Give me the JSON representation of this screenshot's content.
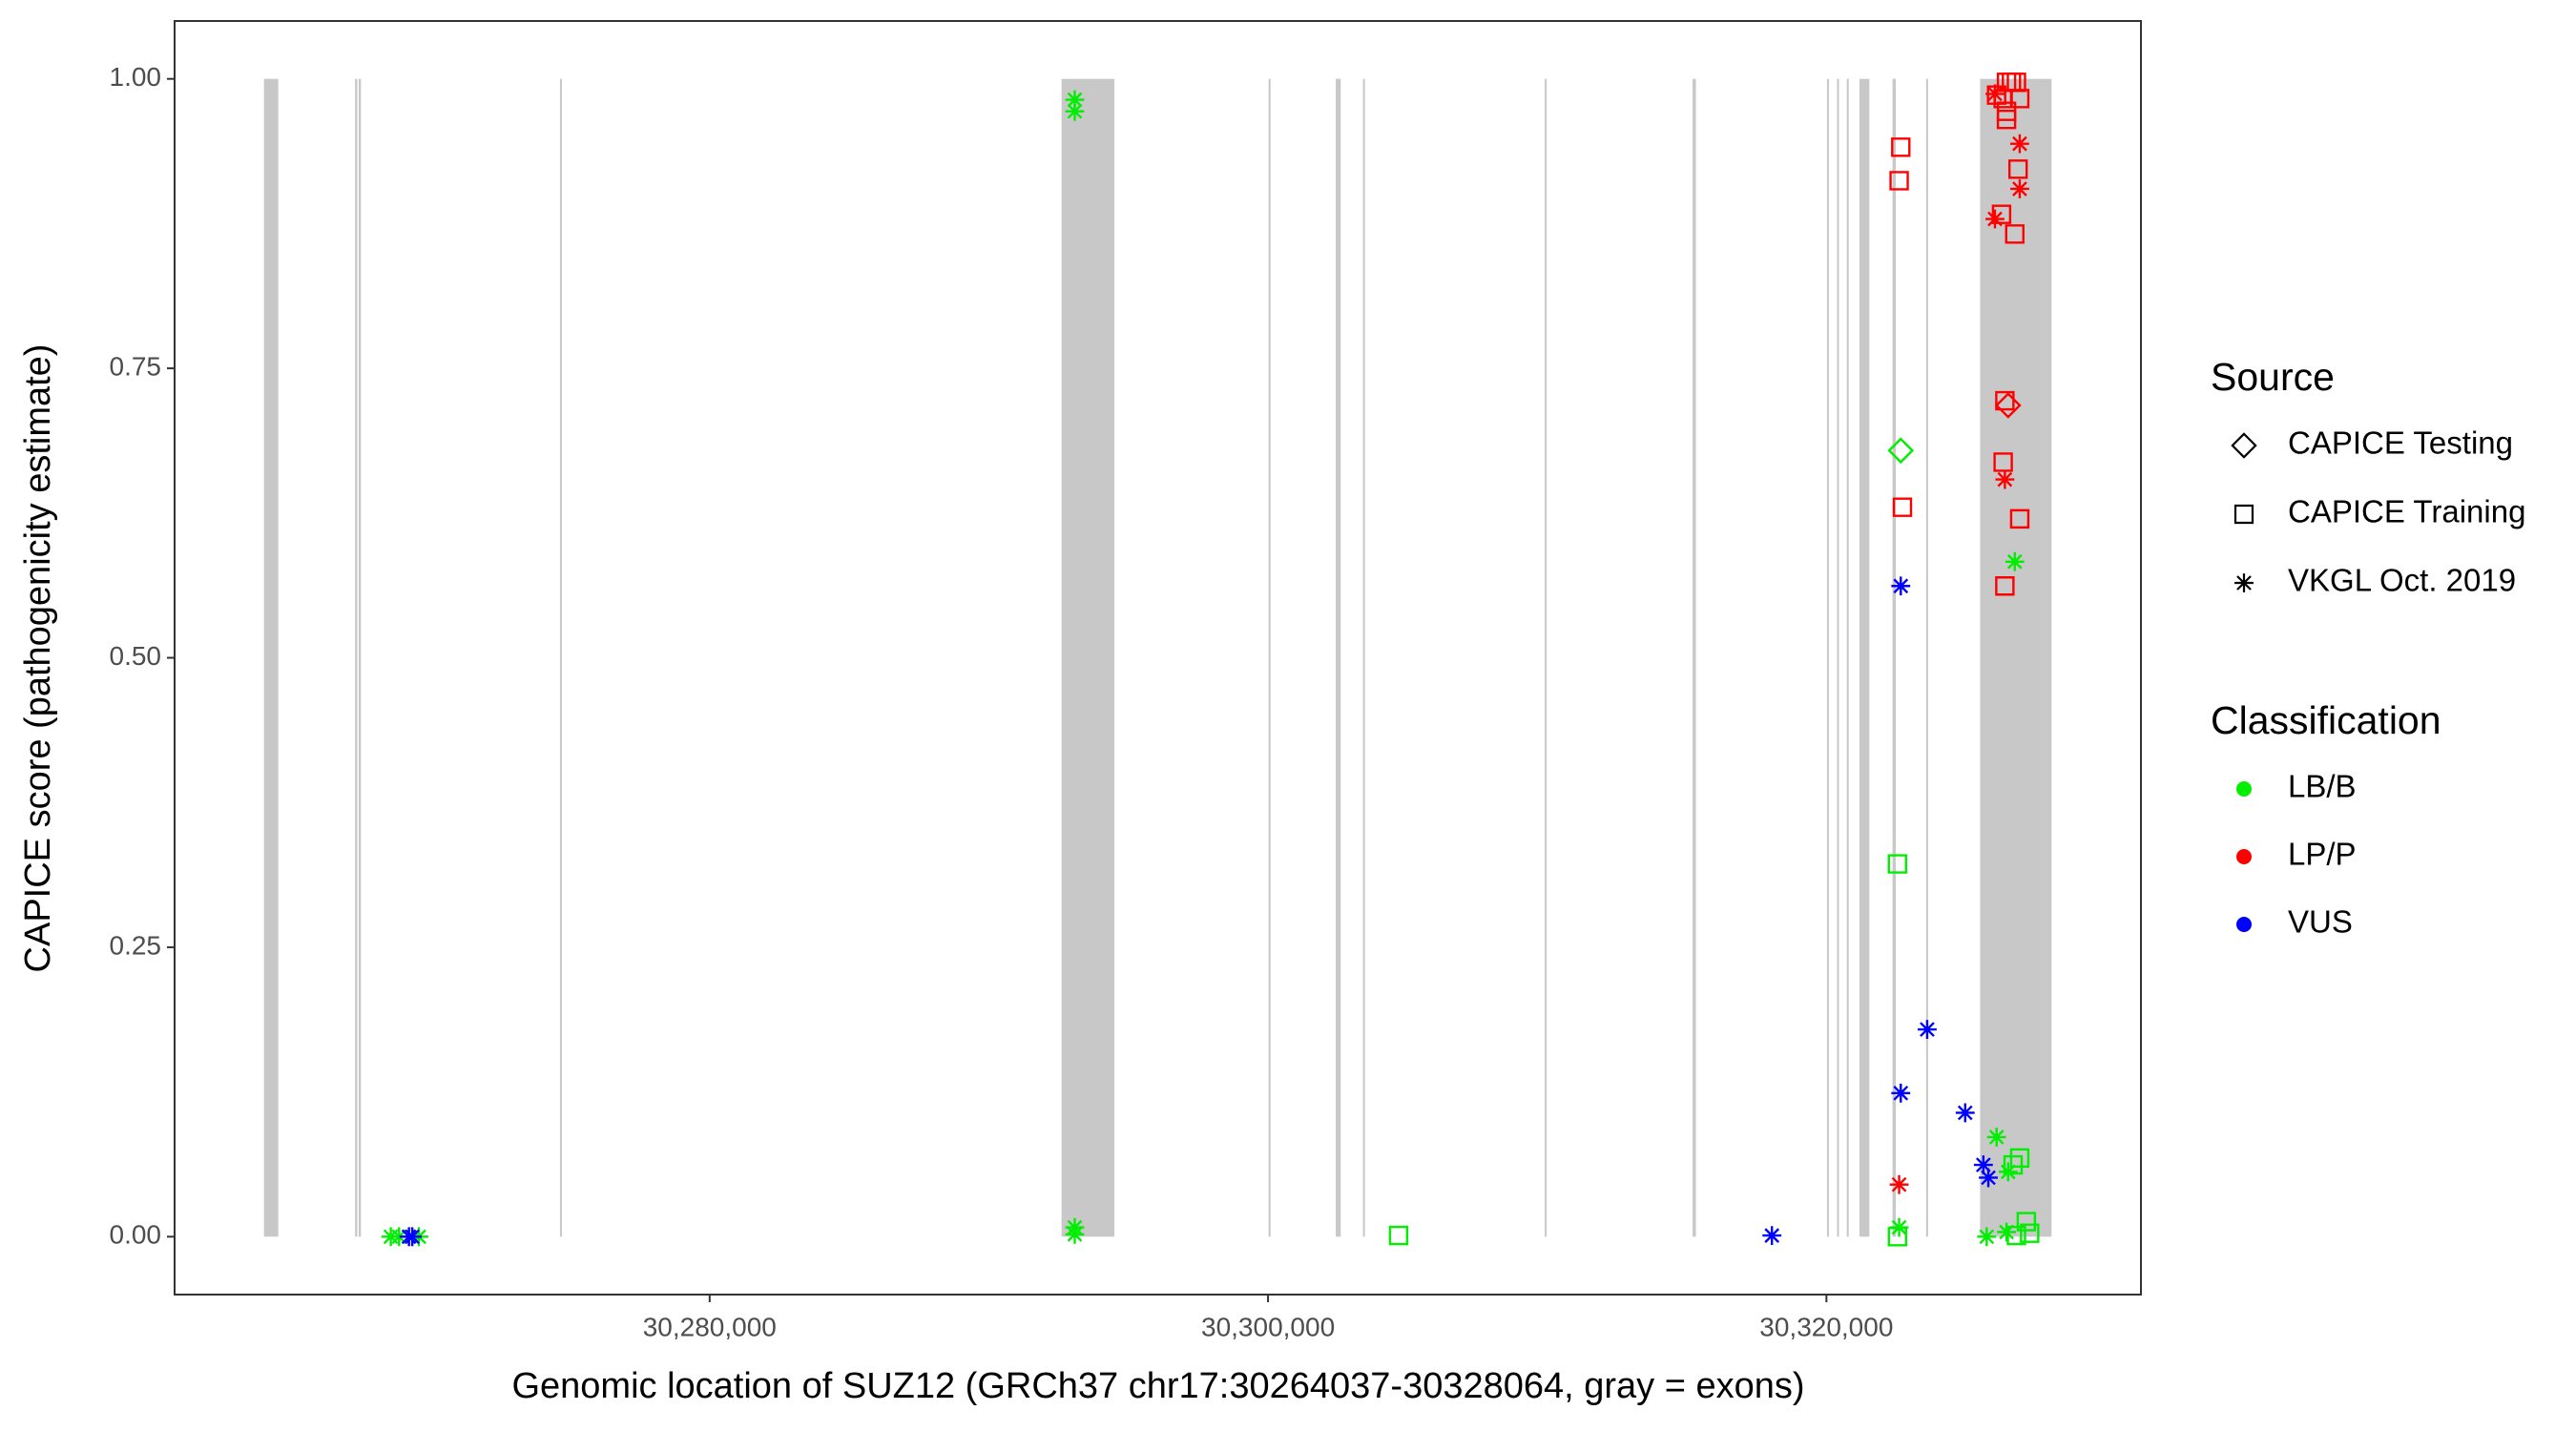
{
  "chart_data": {
    "type": "scatter",
    "xlabel": "Genomic location of SUZ12 (GRCh37 chr17:30264037-30328064, gray = exons)",
    "ylabel": "CAPICE score (pathogenicity estimate)",
    "xlim": [
      30260836,
      30331265
    ],
    "ylim": [
      -0.05,
      1.05
    ],
    "xticks": [
      {
        "value": 30280000,
        "label": "30,280,000"
      },
      {
        "value": 30300000,
        "label": "30,300,000"
      },
      {
        "value": 30320000,
        "label": "30,320,000"
      }
    ],
    "yticks": [
      {
        "value": 0,
        "label": "0.00"
      },
      {
        "value": 0.25,
        "label": "0.25"
      },
      {
        "value": 0.5,
        "label": "0.50"
      },
      {
        "value": 0.75,
        "label": "0.75"
      },
      {
        "value": 1,
        "label": "1.00"
      }
    ],
    "grid": false,
    "legend_position": "right",
    "exon_color": "#c8c8c8",
    "exons": [
      [
        30264037,
        30264550
      ],
      [
        30267300,
        30267380
      ],
      [
        30267430,
        30267510
      ],
      [
        30274640,
        30274710
      ],
      [
        30292604,
        30294497
      ],
      [
        30300020,
        30300090
      ],
      [
        30302426,
        30302604
      ],
      [
        30303400,
        30303470
      ],
      [
        30309910,
        30309980
      ],
      [
        30315207,
        30315325
      ],
      [
        30320020,
        30320090
      ],
      [
        30320380,
        30320450
      ],
      [
        30320730,
        30320800
      ],
      [
        30321183,
        30321538
      ],
      [
        30322367,
        30322485
      ],
      [
        30323570,
        30323640
      ],
      [
        30325503,
        30328064
      ]
    ],
    "shape_legend": {
      "title": "Source",
      "items": [
        {
          "label": "CAPICE Testing",
          "shape": "diamond"
        },
        {
          "label": "CAPICE Training",
          "shape": "square"
        },
        {
          "label": "VKGL Oct. 2019",
          "shape": "asterisk"
        }
      ]
    },
    "color_legend": {
      "title": "Classification",
      "items": [
        {
          "label": "LB/B",
          "color": "#00ee00"
        },
        {
          "label": "LP/P",
          "color": "#ff0000"
        },
        {
          "label": "VUS",
          "color": "#0000ff"
        }
      ]
    },
    "groups": [
      {
        "source": 0,
        "classification": 0,
        "x": [
          30322663
        ],
        "y": [
          0.679
        ]
      },
      {
        "source": 1,
        "classification": 0,
        "x": [
          30304675,
          30322544,
          30322544,
          30326923,
          30326686,
          30327160,
          30326805,
          30327278
        ],
        "y": [
          0.001,
          0.322,
          0,
          0.068,
          0.062,
          0.013,
          0.001,
          0.003
        ]
      },
      {
        "source": 2,
        "classification": 0,
        "x": [
          30268580,
          30268876,
          30269586,
          30293077,
          30293077,
          30293077,
          30293077,
          30322604,
          30326746,
          30326095,
          30326509,
          30325740,
          30326450
        ],
        "y": [
          0,
          0,
          0,
          0.982,
          0.972,
          0.002,
          0.008,
          0.008,
          0.583,
          0.086,
          0.056,
          0,
          0.004
        ]
      },
      {
        "source": 0,
        "classification": 1,
        "x": [
          30326509
        ],
        "y": [
          0.718
        ]
      },
      {
        "source": 1,
        "classification": 1,
        "x": [
          30322663,
          30322604,
          30326095,
          30326450,
          30326627,
          30326805,
          30326331,
          30326450,
          30326450,
          30326923,
          30326864,
          30326272,
          30326746,
          30326331,
          30322722,
          30326923,
          30326391,
          30326391
        ],
        "y": [
          0.941,
          0.912,
          0.986,
          0.997,
          0.997,
          0.997,
          0.983,
          0.972,
          0.965,
          0.983,
          0.922,
          0.883,
          0.866,
          0.669,
          0.63,
          0.62,
          0.562,
          0.722
        ]
      },
      {
        "source": 2,
        "classification": 1,
        "x": [
          30326036,
          30326923,
          30326923,
          30326036,
          30326391,
          30322604
        ],
        "y": [
          0.987,
          0.944,
          0.905,
          0.879,
          0.654,
          0.045
        ]
      },
      {
        "source": 2,
        "classification": 2,
        "x": [
          30269349,
          30269231,
          30318047,
          30322663,
          30322663,
          30323609,
          30324970,
          30325621,
          30325799
        ],
        "y": [
          0,
          0,
          0.001,
          0.562,
          0.124,
          0.179,
          0.107,
          0.062,
          0.051
        ]
      }
    ]
  }
}
